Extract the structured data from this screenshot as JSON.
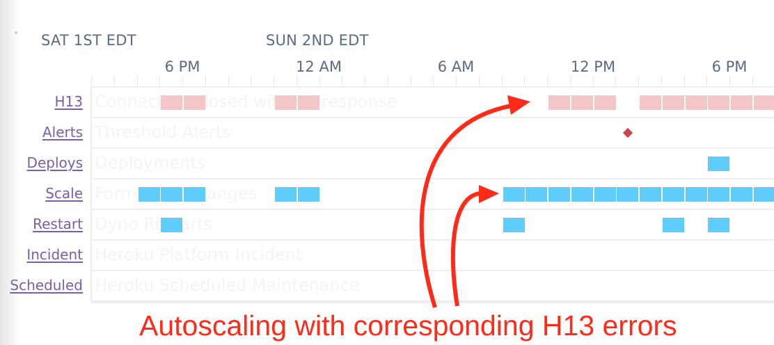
{
  "axis": {
    "day_labels": [
      "SAT 1ST EDT",
      "SUN 2ND EDT"
    ],
    "hour_labels": [
      "6 PM",
      "12 AM",
      "6 AM",
      "12 PM",
      "6 PM"
    ]
  },
  "rows": [
    {
      "label": "H13",
      "description": "Connection closed without response",
      "color": "#f4c6c8",
      "events": [
        "Sat 17:00",
        "Sat 18:00",
        "Sat 22:00",
        "Sat 23:00",
        "Sun 10:00",
        "Sun 11:00",
        "Sun 12:00",
        "Sun 14:00",
        "Sun 15:00",
        "Sun 16:00",
        "Sun 17:00",
        "Sun 18:00",
        "Sun 19:00"
      ]
    },
    {
      "label": "Alerts",
      "description": "Threshold Alerts",
      "color": "#d0424a",
      "marker": "diamond",
      "events": [
        "Sun 13:30"
      ]
    },
    {
      "label": "Deploys",
      "description": "Deployments",
      "color": "#5ecdfb",
      "events": [
        "Sun 17:00"
      ]
    },
    {
      "label": "Scale",
      "description": "Formation Changes",
      "color": "#5ecdfb",
      "events": [
        "Sat 16:00",
        "Sat 17:00",
        "Sat 18:00",
        "Sat 22:00",
        "Sat 23:00",
        "Sun 08:00",
        "Sun 09:00",
        "Sun 10:00",
        "Sun 11:00",
        "Sun 12:00",
        "Sun 13:00",
        "Sun 14:00",
        "Sun 15:00",
        "Sun 16:00",
        "Sun 17:00",
        "Sun 18:00",
        "Sun 19:00"
      ]
    },
    {
      "label": "Restart",
      "description": "Dyno Restarts",
      "color": "#5ecdfb",
      "events": [
        "Sat 17:00",
        "Sun 08:00",
        "Sun 15:00",
        "Sun 17:00"
      ]
    },
    {
      "label": "Incident",
      "description": "Heroku Platform Incident",
      "color": "#5ecdfb",
      "events": []
    },
    {
      "label": "Scheduled",
      "description": "Heroku Scheduled Maintenance",
      "color": "#5ecdfb",
      "events": []
    }
  ],
  "annotation": {
    "text": "Autoscaling with corresponding H13 errors",
    "color": "#ff2a17"
  }
}
